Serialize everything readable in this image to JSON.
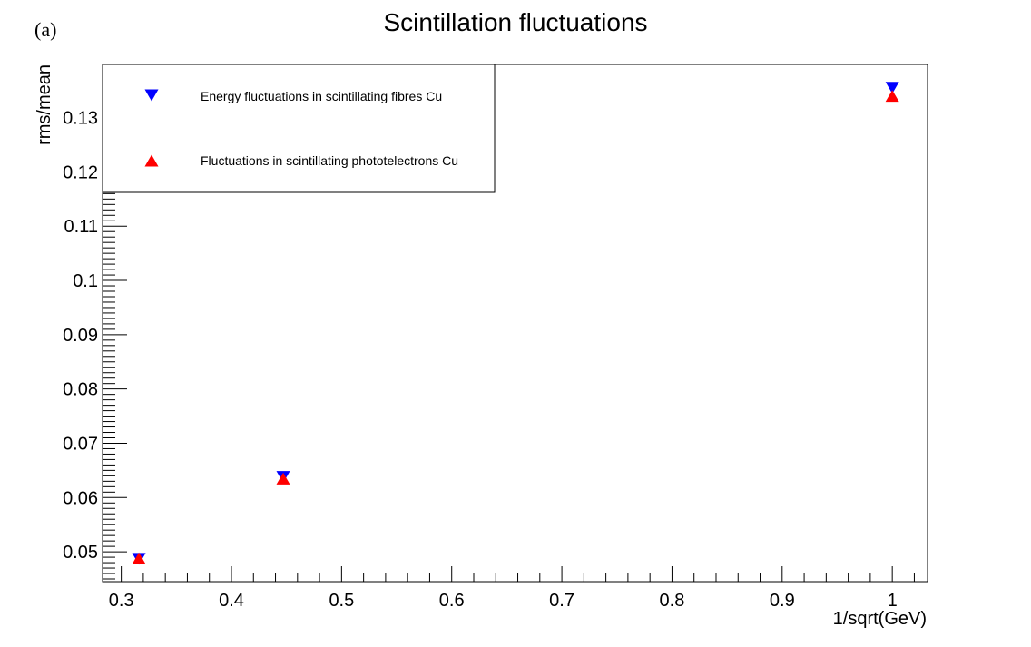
{
  "panel_label": "(a)",
  "chart_data": {
    "type": "scatter",
    "title": "Scintillation fluctuations",
    "xlabel": "1/sqrt(GeV)",
    "ylabel": "rms/mean",
    "xlim": [
      0.283,
      1.032
    ],
    "ylim": [
      0.0445,
      0.1398
    ],
    "x_major_ticks": [
      0.3,
      0.4,
      0.5,
      0.6,
      0.7,
      0.8,
      0.9,
      1.0
    ],
    "x_tick_labels": [
      "0.3",
      "0.4",
      "0.5",
      "0.6",
      "0.7",
      "0.8",
      "0.9",
      "1"
    ],
    "x_minor_step": 0.02,
    "y_major_ticks": [
      0.05,
      0.06,
      0.07,
      0.08,
      0.09,
      0.1,
      0.11,
      0.12,
      0.13
    ],
    "y_tick_labels": [
      "0.05",
      "0.06",
      "0.07",
      "0.08",
      "0.09",
      "0.1",
      "0.11",
      "0.12",
      "0.13"
    ],
    "y_minor_step": 0.001,
    "grid": false,
    "legend_position": "top-left",
    "series": [
      {
        "name": "Energy fluctuations in scintillating fibres Cu",
        "marker": "triangle-down",
        "color": "#0000ff",
        "points": [
          {
            "x": 0.316,
            "y": 0.0487
          },
          {
            "x": 0.447,
            "y": 0.0638
          },
          {
            "x": 1.0,
            "y": 0.1355
          }
        ]
      },
      {
        "name": "Fluctuations in scintillating phototelectrons Cu",
        "marker": "triangle-up",
        "color": "#ff0000",
        "points": [
          {
            "x": 0.316,
            "y": 0.0488
          },
          {
            "x": 0.447,
            "y": 0.0635
          },
          {
            "x": 1.0,
            "y": 0.134
          }
        ]
      }
    ]
  }
}
